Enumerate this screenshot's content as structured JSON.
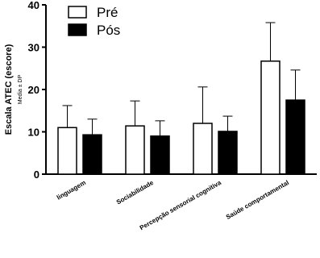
{
  "chart_data": {
    "type": "bar",
    "y_label": "Escala ATEC (escore)",
    "y_sublabel": "Media ± DP",
    "categories": [
      "linguagem",
      "Sociabilidade",
      "Percepção sensorial cognitiva",
      "Saúde comportamental"
    ],
    "series": [
      {
        "name": "Pré",
        "color": "#ffffff",
        "values": [
          11.0,
          11.4,
          12.0,
          26.7
        ],
        "errors": [
          5.2,
          5.9,
          8.6,
          9.1
        ]
      },
      {
        "name": "Pós",
        "color": "#000000",
        "values": [
          9.3,
          9.0,
          10.1,
          17.5
        ],
        "errors": [
          3.7,
          3.6,
          3.6,
          7.1
        ]
      }
    ],
    "ylim": [
      0,
      40
    ],
    "yticks": [
      0,
      10,
      20,
      30,
      40
    ],
    "grid": false,
    "legend": "top-left"
  }
}
